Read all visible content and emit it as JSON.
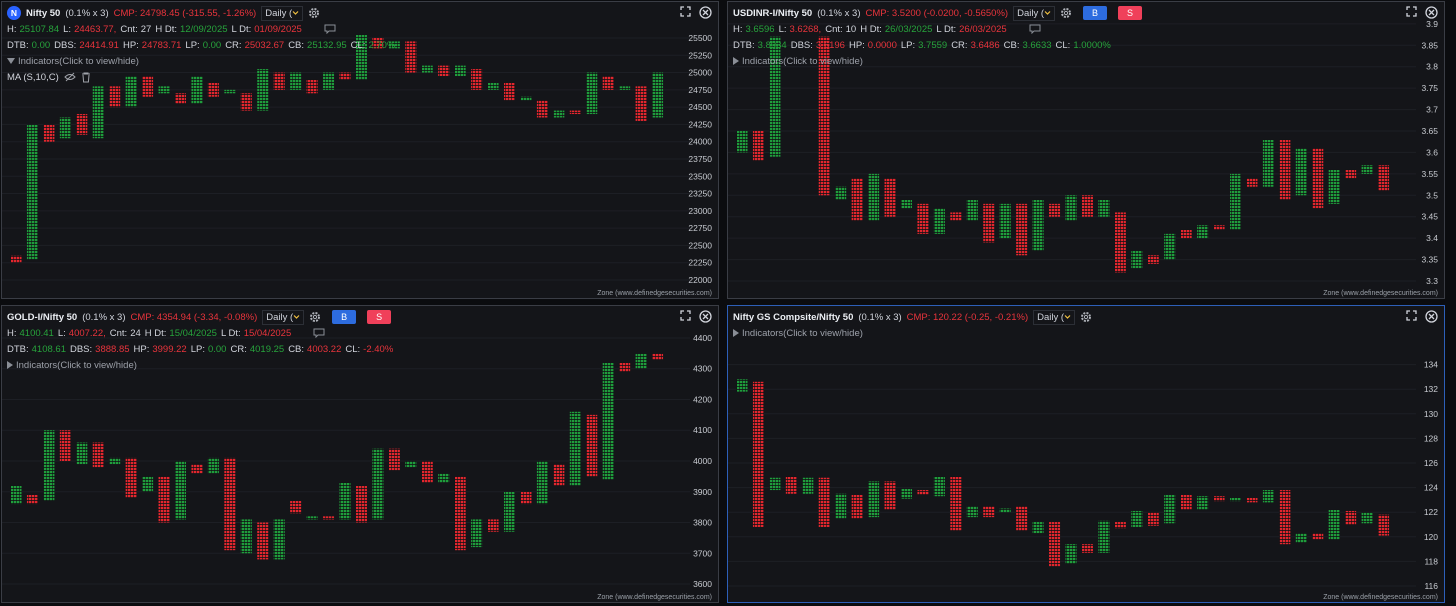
{
  "chart_data": [
    {
      "type": "pnf",
      "icon": "N",
      "title": "Nifty 50",
      "box": "(0.1% x 3)",
      "cmp": "CMP: 24798.45 (-315.55, -1.26%)",
      "cmp_color": "#e8343c",
      "timeframe": "Daily (",
      "stats": [
        [
          {
            "label": "H:",
            "value": "25107.84",
            "color": "#27a33c"
          },
          {
            "label": "L:",
            "value": "24463.77,",
            "color": "#e8343c"
          },
          {
            "label": "Cnt:",
            "value": "27",
            "color": "#d1d4dc"
          },
          {
            "label": "H Dt:",
            "value": "12/09/2025",
            "color": "#27a33c"
          },
          {
            "label": "L Dt:",
            "value": "01/09/2025",
            "color": "#e8343c"
          }
        ],
        [
          {
            "label": "DTB:",
            "value": "0.00",
            "color": "#27a33c"
          },
          {
            "label": "DBS:",
            "value": "24414.91",
            "color": "#e8343c"
          },
          {
            "label": "HP:",
            "value": "24783.71",
            "color": "#e8343c"
          },
          {
            "label": "LP:",
            "value": "0.00",
            "color": "#27a33c"
          },
          {
            "label": "CR:",
            "value": "25032.67",
            "color": "#e8343c"
          },
          {
            "label": "CB:",
            "value": "25132.95",
            "color": "#27a33c"
          },
          {
            "label": "CL:",
            "value": "2.70%",
            "color": "#27a33c"
          }
        ]
      ],
      "indicators": "Indicators(Click to view/hide)",
      "study": "MA (S,10,C)",
      "footer": "Zone (www.definedgesecurities.com)",
      "ylim": [
        21855,
        25760
      ],
      "yticks": [
        22000,
        22250,
        22500,
        22750,
        23000,
        23250,
        23500,
        23750,
        24000,
        24250,
        24500,
        24750,
        25000,
        25250,
        25500
      ],
      "grid": true,
      "series": [
        {
          "color": "#1f9d3c",
          "low": [
            null,
            22300,
            null,
            24050,
            null,
            24050,
            null,
            24500,
            null,
            24700,
            null,
            24550,
            null,
            24700,
            null,
            24450,
            null,
            24750,
            null,
            24750,
            null,
            24900,
            null,
            25350,
            null,
            25000,
            null,
            24950,
            null,
            24750,
            null,
            24600,
            null,
            24350,
            null,
            24400,
            null,
            24750,
            null,
            24350
          ],
          "high": [
            null,
            24250,
            null,
            24350,
            null,
            24800,
            null,
            24950,
            null,
            24800,
            null,
            24950,
            null,
            24750,
            null,
            25050,
            null,
            25000,
            null,
            25000,
            null,
            25550,
            null,
            25450,
            null,
            25100,
            null,
            25100,
            null,
            24850,
            null,
            24650,
            null,
            24450,
            null,
            25000,
            null,
            24800,
            null,
            25000
          ]
        },
        {
          "color": "#e3262e",
          "low": [
            22250,
            null,
            24000,
            null,
            24100,
            null,
            24500,
            null,
            24650,
            null,
            24550,
            null,
            24650,
            null,
            24450,
            null,
            24750,
            null,
            24700,
            null,
            24900,
            null,
            25350,
            null,
            25000,
            null,
            24950,
            null,
            24750,
            null,
            24600,
            null,
            24350,
            null,
            24400,
            null,
            24750,
            null,
            24300,
            null
          ],
          "high": [
            22350,
            null,
            24250,
            null,
            24400,
            null,
            24800,
            null,
            24950,
            null,
            24700,
            null,
            24850,
            null,
            24700,
            null,
            25000,
            null,
            24900,
            null,
            25000,
            null,
            25500,
            null,
            25450,
            null,
            25100,
            null,
            25050,
            null,
            24850,
            null,
            24600,
            null,
            24450,
            null,
            24950,
            null,
            24800,
            null
          ]
        }
      ]
    },
    {
      "type": "pnf",
      "title": "USDINR-I/Nifty 50",
      "box": "(0.1% x 3)",
      "cmp": "CMP: 3.5200 (-0.0200, -0.5650%)",
      "cmp_color": "#e8343c",
      "timeframe": "Daily (",
      "buttons": [
        {
          "text": "B",
          "color": "#2d6cdf"
        },
        {
          "text": "S",
          "color": "#f0405a"
        }
      ],
      "stats": [
        [
          {
            "label": "H:",
            "value": "3.6596",
            "color": "#27a33c"
          },
          {
            "label": "L:",
            "value": "3.6268,",
            "color": "#e8343c"
          },
          {
            "label": "Cnt:",
            "value": "10",
            "color": "#d1d4dc"
          },
          {
            "label": "H Dt:",
            "value": "26/03/2025",
            "color": "#27a33c"
          },
          {
            "label": "L Dt:",
            "value": "26/03/2025",
            "color": "#e8343c"
          }
        ],
        [
          {
            "label": "DTB:",
            "value": "3.8934",
            "color": "#27a33c"
          },
          {
            "label": "DBS:",
            "value": "3.6196",
            "color": "#e8343c"
          },
          {
            "label": "HP:",
            "value": "0.0000",
            "color": "#e8343c"
          },
          {
            "label": "LP:",
            "value": "3.7559",
            "color": "#27a33c"
          },
          {
            "label": "CR:",
            "value": "3.6486",
            "color": "#e8343c"
          },
          {
            "label": "CB:",
            "value": "3.6633",
            "color": "#27a33c"
          },
          {
            "label": "CL:",
            "value": "1.0000%",
            "color": "#27a33c"
          }
        ]
      ],
      "indicators": "Indicators(Click to view/hide)",
      "footer": "Zone (www.definedgesecurities.com)",
      "ylim": [
        3.279,
        3.909
      ],
      "yticks": [
        3.3,
        3.35,
        3.4,
        3.45,
        3.5,
        3.55,
        3.6,
        3.65,
        3.7,
        3.75,
        3.8,
        3.85,
        3.9
      ],
      "grid": true,
      "series": [
        {
          "color": "#1f9d3c",
          "low": [
            3.6,
            null,
            3.59,
            null,
            null,
            null,
            3.49,
            null,
            3.44,
            null,
            3.47,
            null,
            3.41,
            null,
            3.44,
            null,
            3.4,
            null,
            3.37,
            null,
            3.44,
            null,
            3.45,
            null,
            3.33,
            null,
            3.35,
            null,
            3.4,
            null,
            3.42,
            null,
            3.52,
            null,
            3.5,
            null,
            3.48,
            null,
            3.55,
            null
          ],
          "high": [
            3.65,
            null,
            3.87,
            null,
            null,
            null,
            3.52,
            null,
            3.55,
            null,
            3.49,
            null,
            3.47,
            null,
            3.49,
            null,
            3.48,
            null,
            3.49,
            null,
            3.5,
            null,
            3.49,
            null,
            3.37,
            null,
            3.41,
            null,
            3.43,
            null,
            3.55,
            null,
            3.63,
            null,
            3.61,
            null,
            3.56,
            null,
            3.57,
            null
          ]
        },
        {
          "color": "#e3262e",
          "low": [
            null,
            3.58,
            null,
            null,
            null,
            3.5,
            null,
            3.44,
            null,
            3.45,
            null,
            3.41,
            null,
            3.44,
            null,
            3.39,
            null,
            3.36,
            null,
            3.45,
            null,
            3.45,
            null,
            3.32,
            null,
            3.34,
            null,
            3.4,
            null,
            3.42,
            null,
            3.52,
            null,
            3.49,
            null,
            3.47,
            null,
            3.54,
            null,
            3.51
          ],
          "high": [
            null,
            3.65,
            null,
            null,
            null,
            3.87,
            null,
            3.54,
            null,
            3.54,
            null,
            3.48,
            null,
            3.46,
            null,
            3.48,
            null,
            3.48,
            null,
            3.48,
            null,
            3.5,
            null,
            3.46,
            null,
            3.36,
            null,
            3.42,
            null,
            3.43,
            null,
            3.54,
            null,
            3.63,
            null,
            3.61,
            null,
            3.56,
            null,
            3.57
          ]
        }
      ]
    },
    {
      "type": "pnf",
      "title": "GOLD-I/Nifty 50",
      "box": "(0.1% x 3)",
      "cmp": "CMP: 4354.94 (-3.34, -0.08%)",
      "cmp_color": "#e8343c",
      "timeframe": "Daily (",
      "buttons": [
        {
          "text": "B",
          "color": "#2d6cdf"
        },
        {
          "text": "S",
          "color": "#f0405a"
        }
      ],
      "stats": [
        [
          {
            "label": "H:",
            "value": "4100.41",
            "color": "#27a33c"
          },
          {
            "label": "L:",
            "value": "4007.22,",
            "color": "#e8343c"
          },
          {
            "label": "Cnt:",
            "value": "24",
            "color": "#d1d4dc"
          },
          {
            "label": "H Dt:",
            "value": "15/04/2025",
            "color": "#27a33c"
          },
          {
            "label": "L Dt:",
            "value": "15/04/2025",
            "color": "#e8343c"
          }
        ],
        [
          {
            "label": "DTB:",
            "value": "4108.61",
            "color": "#27a33c"
          },
          {
            "label": "DBS:",
            "value": "3888.85",
            "color": "#e8343c"
          },
          {
            "label": "HP:",
            "value": "3999.22",
            "color": "#e8343c"
          },
          {
            "label": "LP:",
            "value": "0.00",
            "color": "#27a33c"
          },
          {
            "label": "CR:",
            "value": "4019.25",
            "color": "#27a33c"
          },
          {
            "label": "CB:",
            "value": "4003.22",
            "color": "#e8343c"
          },
          {
            "label": "CL:",
            "value": "-2.40%",
            "color": "#e8343c"
          }
        ]
      ],
      "indicators": "Indicators(Click to view/hide)",
      "footer": "Zone (www.definedgesecurities.com)",
      "ylim": [
        3567.5,
        4445.5
      ],
      "yticks": [
        3600,
        3700,
        3800,
        3900,
        4000,
        4100,
        4200,
        4300,
        4400
      ],
      "grid": true,
      "series": [
        {
          "color": "#1f9d3c",
          "low": [
            3860,
            null,
            3870,
            null,
            3990,
            null,
            3990,
            null,
            3900,
            null,
            3810,
            null,
            3960,
            null,
            3700,
            null,
            3680,
            null,
            3810,
            null,
            3810,
            null,
            3810,
            null,
            3980,
            null,
            3930,
            null,
            3720,
            null,
            3770,
            null,
            3860,
            null,
            3920,
            null,
            3940,
            null,
            4300,
            null
          ],
          "high": [
            3920,
            null,
            4100,
            null,
            4060,
            null,
            4010,
            null,
            3950,
            null,
            4000,
            null,
            4010,
            null,
            3810,
            null,
            3810,
            null,
            3820,
            null,
            3930,
            null,
            4040,
            null,
            4000,
            null,
            3960,
            null,
            3810,
            null,
            3900,
            null,
            4000,
            null,
            4160,
            null,
            4320,
            null,
            4350,
            null
          ]
        },
        {
          "color": "#e3262e",
          "low": [
            null,
            3860,
            null,
            4000,
            null,
            3980,
            null,
            3880,
            null,
            3800,
            null,
            3960,
            null,
            3710,
            null,
            3680,
            null,
            3830,
            null,
            3810,
            null,
            3800,
            null,
            3970,
            null,
            3930,
            null,
            3710,
            null,
            3770,
            null,
            3860,
            null,
            3920,
            null,
            3950,
            null,
            4290,
            null,
            4330
          ],
          "high": [
            null,
            3890,
            null,
            4100,
            null,
            4060,
            null,
            4010,
            null,
            3950,
            null,
            3990,
            null,
            4010,
            null,
            3800,
            null,
            3870,
            null,
            3820,
            null,
            3920,
            null,
            4040,
            null,
            4000,
            null,
            3950,
            null,
            3810,
            null,
            3900,
            null,
            3990,
            null,
            4150,
            null,
            4320,
            null,
            4350
          ]
        }
      ]
    },
    {
      "type": "pnf",
      "title": "Nifty GS Compsite/Nifty 50",
      "box": "(0.1% x 3)",
      "cmp": "CMP: 120.22 (-0.25, -0.21%)",
      "cmp_color": "#e8343c",
      "timeframe": "Daily (",
      "indicators": "Indicators(Click to view/hide)",
      "footer": "Zone (www.definedgesecurities.com)",
      "ylim": [
        115.35,
        137.3
      ],
      "yticks": [
        116,
        118,
        120,
        122,
        124,
        126,
        128,
        130,
        132,
        134
      ],
      "grid": true,
      "series": [
        {
          "color": "#1f9d3c",
          "low": [
            131.8,
            null,
            123.8,
            null,
            123.5,
            null,
            121.5,
            null,
            121.6,
            null,
            123.1,
            null,
            123.3,
            null,
            121.6,
            null,
            122.0,
            null,
            120.3,
            null,
            117.8,
            null,
            118.7,
            null,
            120.8,
            null,
            121.1,
            null,
            122.2,
            null,
            122.9,
            null,
            122.8,
            null,
            119.5,
            null,
            119.8,
            null,
            121.1,
            null
          ],
          "high": [
            132.8,
            null,
            124.8,
            null,
            124.8,
            null,
            123.5,
            null,
            124.5,
            null,
            123.9,
            null,
            124.9,
            null,
            122.5,
            null,
            122.3,
            null,
            121.2,
            null,
            119.4,
            null,
            121.3,
            null,
            122.1,
            null,
            123.4,
            null,
            123.3,
            null,
            123.2,
            null,
            123.8,
            null,
            120.3,
            null,
            122.2,
            null,
            122.0,
            null
          ]
        },
        {
          "color": "#e3262e",
          "low": [
            null,
            120.8,
            null,
            123.5,
            null,
            120.8,
            null,
            121.5,
            null,
            122.2,
            null,
            123.4,
            null,
            120.5,
            null,
            121.6,
            null,
            120.5,
            null,
            117.6,
            null,
            118.7,
            null,
            120.7,
            null,
            120.9,
            null,
            122.2,
            null,
            122.9,
            null,
            122.8,
            null,
            119.4,
            null,
            119.8,
            null,
            121.0,
            null,
            120.1
          ],
          "high": [
            null,
            132.6,
            null,
            124.9,
            null,
            124.8,
            null,
            123.4,
            null,
            124.5,
            null,
            123.8,
            null,
            124.9,
            null,
            122.5,
            null,
            122.5,
            null,
            121.2,
            null,
            119.4,
            null,
            121.2,
            null,
            122.0,
            null,
            123.4,
            null,
            123.3,
            null,
            123.2,
            null,
            123.8,
            null,
            120.3,
            null,
            122.1,
            null,
            121.8
          ]
        }
      ]
    }
  ]
}
